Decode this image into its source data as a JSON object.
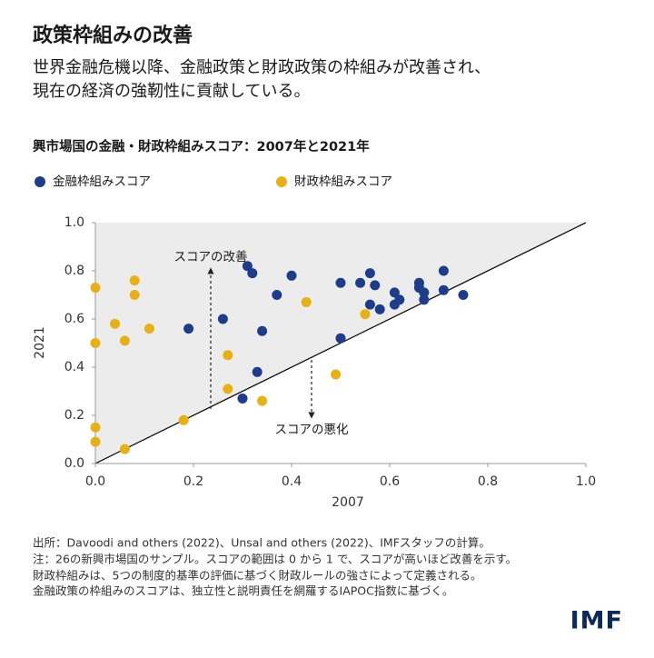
{
  "chart_data": {
    "type": "scatter",
    "title": "政策枠組みの改善",
    "subtitle": [
      "世界金融危機以降、金融政策と財政政策の枠組みが改善され、",
      "現在の経済の強靭性に貢献している。"
    ],
    "chart_title": "興市場国の金融・財政枠組みスコア：2007年と2021年",
    "xlabel": "2007",
    "ylabel": "2021",
    "xlim": [
      0,
      1
    ],
    "ylim": [
      0,
      1
    ],
    "xticks": [
      {
        "value": 0,
        "label": "0.0"
      },
      0.2,
      0.4,
      0.6,
      0.8,
      {
        "value": 1,
        "label": "1.0"
      }
    ],
    "yticks": [
      {
        "value": 0,
        "label": "0.0"
      },
      0.2,
      0.4,
      0.6,
      0.8,
      {
        "value": 1,
        "label": "1.0"
      }
    ],
    "grid": false,
    "legend": "top-left",
    "annotations": [
      "スコアの改善",
      "スコアの悪化"
    ],
    "series": [
      {
        "name": "金融枠組みスコア",
        "color": "#1d3c8c",
        "x": [
          0.19,
          0.26,
          0.31,
          0.32,
          0.34,
          0.33,
          0.3,
          0.37,
          0.4,
          0.5,
          0.5,
          0.54,
          0.56,
          0.57,
          0.56,
          0.58,
          0.61,
          0.62,
          0.61,
          0.66,
          0.66,
          0.67,
          0.67,
          0.71,
          0.71,
          0.75
        ],
        "values": [
          0.56,
          0.6,
          0.82,
          0.79,
          0.55,
          0.38,
          0.27,
          0.7,
          0.78,
          0.75,
          0.52,
          0.75,
          0.79,
          0.74,
          0.66,
          0.64,
          0.71,
          0.68,
          0.66,
          0.75,
          0.73,
          0.71,
          0.68,
          0.72,
          0.8,
          0.7
        ]
      },
      {
        "name": "財政枠組みスコア",
        "color": "#e8b012",
        "x": [
          0.0,
          0.0,
          0.0,
          0.0,
          0.04,
          0.06,
          0.06,
          0.08,
          0.08,
          0.11,
          0.18,
          0.27,
          0.27,
          0.34,
          0.43,
          0.49,
          0.55
        ],
        "values": [
          0.73,
          0.5,
          0.15,
          0.09,
          0.58,
          0.51,
          0.06,
          0.76,
          0.7,
          0.56,
          0.18,
          0.45,
          0.31,
          0.26,
          0.67,
          0.37,
          0.62
        ]
      }
    ],
    "notes": [
      "出所：Davoodi and others (2022)、Unsal and others (2022)、IMFスタッフの計算。",
      "注：26の新興市場国のサンプル。スコアの範囲は 0 から 1 で、スコアが高いほど改善を示す。",
      "財政枠組みは、5つの制度的基準の評価に基づく財政ルールの強さによって定義される。",
      "金融政策の枠組みのスコアは、独立性と説明責任を網羅するIAPOC指数に基づく。"
    ],
    "logo": "IMF"
  }
}
